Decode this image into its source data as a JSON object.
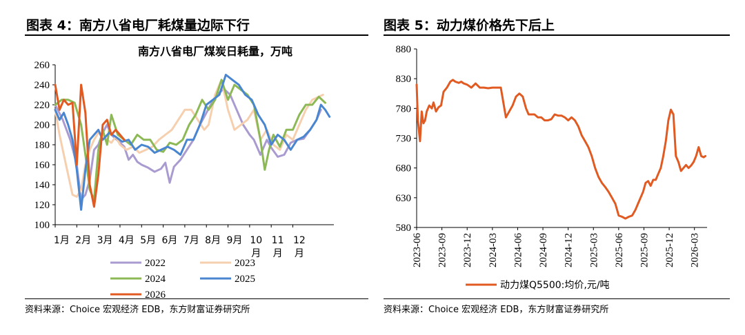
{
  "left": {
    "figure_title": "图表 4：南方八省电厂耗煤量边际下行",
    "source": "资料来源：Choice 宏观经济 EDB，东方财富证券研究所"
  },
  "right": {
    "figure_title": "图表 5：动力煤价格先下后上",
    "source": "资料来源：Choice 宏观经济 EDB，东方财富证券研究所"
  },
  "colors": {
    "2022": "#a99bd0",
    "2023": "#f6cfae",
    "2024": "#8cb956",
    "2025": "#4a86d0",
    "2026": "#e05a22",
    "price": "#e05a22"
  },
  "chart_data": [
    {
      "type": "line",
      "title": "南方八省电厂煤炭日耗量，万吨",
      "ylim": [
        100,
        260
      ],
      "yticks": [
        100,
        120,
        140,
        160,
        180,
        200,
        220,
        240,
        260
      ],
      "xlim": [
        0,
        12.9
      ],
      "xticks": [
        {
          "pos": 0.3,
          "label": "1月"
        },
        {
          "pos": 1.3,
          "label": "2月"
        },
        {
          "pos": 2.3,
          "label": "3月"
        },
        {
          "pos": 3.3,
          "label": "4月"
        },
        {
          "pos": 4.3,
          "label": "5月"
        },
        {
          "pos": 5.3,
          "label": "6月"
        },
        {
          "pos": 6.3,
          "label": "7月"
        },
        {
          "pos": 7.3,
          "label": "8月"
        },
        {
          "pos": 8.3,
          "label": "9月"
        },
        {
          "pos": 9.3,
          "label": "10月"
        },
        {
          "pos": 10.3,
          "label": "11月"
        },
        {
          "pos": 11.3,
          "label": "12月"
        }
      ],
      "series": [
        {
          "name": "2022",
          "color_key": "2022",
          "x": [
            0,
            0.35,
            0.7,
            1.0,
            1.2,
            1.4,
            1.6,
            1.8,
            2.0,
            2.2,
            2.4,
            2.6,
            2.8,
            3.0,
            3.2,
            3.4,
            3.6,
            3.8,
            4.0,
            4.3,
            4.6,
            4.9,
            5.1,
            5.3,
            5.5,
            5.8,
            6.1,
            6.4,
            6.7,
            7.0,
            7.2,
            7.5,
            7.8,
            8.1,
            8.4,
            8.7,
            9.0,
            9.2,
            9.5,
            9.8,
            10.0,
            10.3,
            10.6,
            10.9,
            11.2,
            11.5,
            11.8,
            12.1,
            12.3
          ],
          "values": [
            220,
            205,
            185,
            160,
            125,
            130,
            145,
            175,
            180,
            192,
            200,
            190,
            186,
            182,
            178,
            165,
            170,
            163,
            160,
            157,
            153,
            156,
            162,
            142,
            158,
            165,
            175,
            185,
            200,
            212,
            220,
            230,
            236,
            230,
            215,
            200,
            190,
            185,
            170,
            185,
            177,
            168,
            170,
            182,
            185,
            186,
            195,
            205,
            215
          ]
        },
        {
          "name": "2023",
          "color_key": "2023",
          "x": [
            0,
            0.2,
            0.4,
            0.6,
            0.8,
            1.0,
            1.2,
            1.4,
            1.6,
            1.8,
            2.0,
            2.2,
            2.4,
            2.6,
            2.8,
            3.0,
            3.3,
            3.6,
            3.9,
            4.2,
            4.5,
            4.8,
            5.1,
            5.4,
            5.7,
            6.0,
            6.3,
            6.6,
            6.9,
            7.1,
            7.4,
            7.7,
            8.0,
            8.3,
            8.6,
            8.9,
            9.2,
            9.5,
            9.8,
            10.1,
            10.4,
            10.7,
            11.0,
            11.3,
            11.6,
            11.9,
            12.2,
            12.4
          ],
          "values": [
            215,
            190,
            170,
            150,
            130,
            128,
            135,
            160,
            175,
            185,
            192,
            190,
            185,
            182,
            188,
            180,
            175,
            178,
            172,
            175,
            178,
            185,
            190,
            195,
            205,
            215,
            215,
            205,
            195,
            200,
            230,
            245,
            215,
            195,
            200,
            205,
            215,
            185,
            195,
            180,
            175,
            190,
            185,
            200,
            215,
            225,
            228,
            230
          ]
        },
        {
          "name": "2024",
          "color_key": "2024",
          "x": [
            0,
            0.3,
            0.6,
            0.9,
            1.2,
            1.4,
            1.6,
            1.8,
            2.0,
            2.2,
            2.4,
            2.6,
            2.9,
            3.2,
            3.5,
            3.8,
            4.1,
            4.4,
            4.7,
            5.0,
            5.3,
            5.6,
            5.9,
            6.2,
            6.5,
            6.8,
            7.1,
            7.4,
            7.7,
            8.0,
            8.3,
            8.6,
            8.9,
            9.2,
            9.5,
            9.7,
            9.9,
            10.1,
            10.4,
            10.7,
            11.0,
            11.3,
            11.6,
            11.9,
            12.2,
            12.5
          ],
          "values": [
            220,
            225,
            225,
            222,
            200,
            170,
            135,
            125,
            175,
            195,
            180,
            210,
            190,
            185,
            180,
            190,
            185,
            185,
            175,
            173,
            182,
            180,
            185,
            200,
            210,
            225,
            215,
            225,
            245,
            225,
            240,
            235,
            230,
            220,
            185,
            155,
            175,
            190,
            178,
            195,
            195,
            210,
            220,
            220,
            228,
            222
          ]
        },
        {
          "name": "2025",
          "color_key": "2025",
          "x": [
            0,
            0.2,
            0.4,
            0.6,
            0.8,
            1.0,
            1.2,
            1.4,
            1.6,
            1.8,
            2.0,
            2.2,
            2.5,
            2.8,
            3.1,
            3.4,
            3.7,
            4.0,
            4.3,
            4.6,
            4.9,
            5.2,
            5.5,
            5.8,
            6.1,
            6.4,
            6.7,
            7.0,
            7.3,
            7.6,
            7.9,
            8.2,
            8.5,
            8.8,
            9.1,
            9.4,
            9.7,
            10.0,
            10.3,
            10.6,
            10.9,
            11.2,
            11.5,
            11.8,
            12.1,
            12.3,
            12.5,
            12.7
          ],
          "values": [
            215,
            205,
            212,
            200,
            185,
            155,
            115,
            155,
            185,
            190,
            195,
            185,
            192,
            188,
            183,
            185,
            175,
            180,
            178,
            172,
            175,
            178,
            175,
            170,
            185,
            185,
            200,
            220,
            225,
            230,
            250,
            245,
            240,
            230,
            225,
            210,
            200,
            180,
            190,
            185,
            175,
            185,
            188,
            195,
            205,
            220,
            215,
            208
          ]
        },
        {
          "name": "2026",
          "color_key": "2026",
          "x": [
            0,
            0.2,
            0.4,
            0.6,
            0.8,
            1.0,
            1.2,
            1.4,
            1.5,
            1.6,
            1.8,
            2.0,
            2.2,
            2.4,
            2.6,
            2.8,
            3.0,
            3.2
          ],
          "values": [
            240,
            215,
            225,
            220,
            222,
            160,
            240,
            212,
            175,
            140,
            118,
            150,
            200,
            205,
            190,
            195,
            190,
            185
          ]
        }
      ],
      "legend": [
        "2022",
        "2023",
        "2024",
        "2025",
        "2026"
      ]
    },
    {
      "type": "line",
      "series_name": "动力煤Q5500:均价,元/吨",
      "ylim": [
        580,
        880
      ],
      "yticks": [
        580,
        630,
        680,
        730,
        780,
        830,
        880
      ],
      "xlim": [
        0,
        34.5
      ],
      "xticks": [
        "2023-06",
        "2023-09",
        "2023-12",
        "2024-03",
        "2024-06",
        "2024-09",
        "2024-12",
        "2025-03",
        "2025-06",
        "2025-09",
        "2025-12",
        "2026-03"
      ],
      "x": [
        0,
        0.15,
        0.4,
        0.6,
        0.8,
        1.0,
        1.2,
        1.5,
        1.8,
        2.0,
        2.3,
        2.6,
        2.9,
        3.2,
        3.6,
        4.0,
        4.3,
        4.6,
        5.0,
        5.3,
        5.6,
        6.0,
        6.5,
        7.0,
        7.5,
        8.0,
        8.5,
        9.0,
        9.5,
        10.0,
        10.3,
        10.6,
        11.0,
        11.4,
        11.8,
        12.2,
        12.6,
        13.0,
        13.3,
        13.6,
        14.0,
        14.4,
        14.8,
        15.2,
        15.6,
        16.0,
        16.4,
        16.8,
        17.2,
        17.6,
        18.0,
        18.4,
        18.8,
        19.2,
        19.6,
        20.0,
        20.4,
        20.8,
        21.2,
        21.6,
        22.0,
        22.4,
        22.8,
        23.2,
        23.6,
        24.0,
        24.4,
        24.8,
        25.2,
        25.6,
        26.0,
        26.3,
        26.6,
        26.9,
        27.2,
        27.5,
        27.8,
        28.1,
        28.4,
        28.7,
        29.0,
        29.3,
        29.6,
        29.9,
        30.2,
        30.5,
        30.8,
        31.1,
        31.4,
        31.7,
        32.0,
        32.3,
        32.6,
        32.9,
        33.2,
        33.5,
        33.8,
        34.1,
        34.3
      ],
      "values": [
        820,
        760,
        725,
        775,
        755,
        760,
        775,
        785,
        780,
        790,
        775,
        782,
        785,
        808,
        815,
        825,
        828,
        825,
        823,
        825,
        822,
        820,
        815,
        822,
        815,
        815,
        814,
        815,
        815,
        815,
        790,
        765,
        775,
        785,
        800,
        805,
        800,
        780,
        770,
        770,
        770,
        765,
        765,
        760,
        760,
        762,
        770,
        768,
        768,
        765,
        760,
        765,
        760,
        750,
        735,
        725,
        715,
        700,
        680,
        665,
        655,
        648,
        640,
        630,
        620,
        600,
        598,
        595,
        598,
        600,
        610,
        620,
        630,
        640,
        655,
        658,
        650,
        660,
        660,
        670,
        680,
        700,
        725,
        760,
        778,
        770,
        700,
        690,
        675,
        680,
        685,
        680,
        684,
        690,
        700,
        715,
        700,
        698,
        700
      ]
    }
  ]
}
